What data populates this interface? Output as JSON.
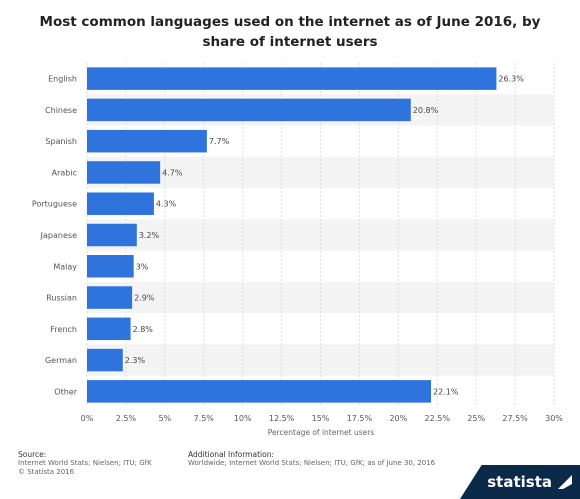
{
  "chart_data": {
    "type": "bar",
    "orientation": "horizontal",
    "title": "Most common languages used on the internet as of June 2016, by share of internet users",
    "xlabel": "Percentage of internet users",
    "ylabel": "",
    "categories": [
      "English",
      "Chinese",
      "Spanish",
      "Arabic",
      "Portuguese",
      "Japanese",
      "Malay",
      "Russian",
      "French",
      "German",
      "Other"
    ],
    "values": [
      26.3,
      20.8,
      7.7,
      4.7,
      4.3,
      3.2,
      3.0,
      2.9,
      2.8,
      2.3,
      22.1
    ],
    "value_labels": [
      "26.3%",
      "20.8%",
      "7.7%",
      "4.7%",
      "4.3%",
      "3.2%",
      "3%",
      "2.9%",
      "2.8%",
      "2.3%",
      "22.1%"
    ],
    "xlim": [
      0,
      30
    ],
    "xticks": [
      0,
      2.5,
      5,
      7.5,
      10,
      12.5,
      15,
      17.5,
      20,
      22.5,
      25,
      27.5,
      30
    ],
    "xtick_labels": [
      "0%",
      "2.5%",
      "5%",
      "7.5%",
      "10%",
      "12.5%",
      "15%",
      "17.5%",
      "20%",
      "22.5%",
      "25%",
      "27.5%",
      "30%"
    ],
    "grid": true,
    "bar_color": "#2f74dc"
  },
  "footer": {
    "source_label": "Source:",
    "source_lines": [
      "Internet World Stats; Nielsen; ITU; GfK",
      "© Statista 2016"
    ],
    "additional_label": "Additional Information:",
    "additional_text": "Worldwide; Internet World Stats; Nielsen; ITU; GfK; as of June 30, 2016"
  },
  "brand": {
    "name": "statista"
  }
}
